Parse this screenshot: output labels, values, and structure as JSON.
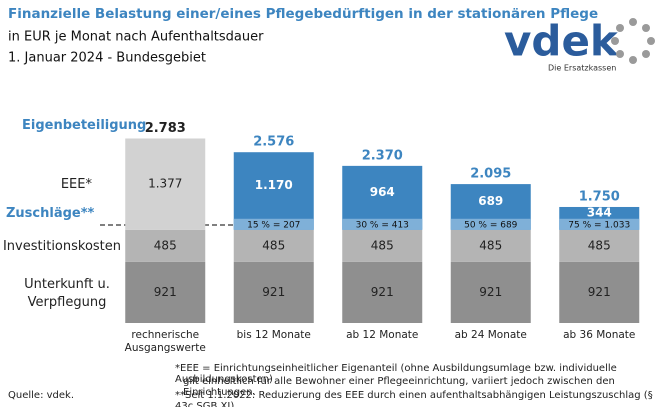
{
  "chart_data": {
    "type": "stacked-bar",
    "title": "Finanzielle Belastung einer/eines Pflegebedürftigen in der stationären Pflege",
    "subtitle": [
      "in EUR je Monat nach Aufenthaltsdauer",
      "1. Januar 2024 - Bundesgebiet"
    ],
    "categories": [
      "rechnerische Ausgangswerte",
      "bis 12 Monate",
      "ab 12 Monate",
      "ab 24 Monate",
      "ab 36 Monate"
    ],
    "series": [
      {
        "name": "Unterkunft u. Verpflegung",
        "color": "#8f8f8f",
        "values": [
          921,
          921,
          921,
          921,
          921
        ]
      },
      {
        "name": "Investitionskosten",
        "color": "#b4b4b4",
        "values": [
          485,
          485,
          485,
          485,
          485
        ]
      },
      {
        "name": "EEE*",
        "colors": [
          "#d2d2d2",
          "#3d85c0",
          "#3d85c0",
          "#3d85c0",
          "#3d85c0"
        ],
        "values": [
          1377,
          1170,
          964,
          689,
          344
        ],
        "value_labels": [
          "1.377",
          "1.170",
          "964",
          "689",
          "344"
        ]
      }
    ],
    "totals": {
      "name": "Eigenbeteiligung",
      "values": [
        2783,
        2576,
        2370,
        2095,
        1750
      ],
      "value_labels": [
        "2.783",
        "2.576",
        "2.370",
        "2.095",
        "1.750"
      ]
    },
    "zuschlaege": {
      "name": "Zuschläge**",
      "labels": [
        null,
        "15 % = 207",
        "30 % = 413",
        "50 % = 689",
        "75 % = 1.033"
      ]
    },
    "footnotes": [
      "*EEE = Einrichtungseinheitlicher Eigenanteil (ohne Ausbildungsumlage bzw. individuelle Ausbildungskosten)",
      "gilt einheitlich für alle Bewohner einer Pflegeeinrichtung, variiert jedoch zwischen den Einrichtungen.",
      "**Seit 1.1.2022: Reduzierung des EEE durch einen aufenthaltsabhängigen Leistungszuschlag (§ 43c SGB XI)."
    ],
    "source": "Quelle: vdek.",
    "logo": {
      "name": "vdek",
      "tagline": "Die Ersatzkassen"
    }
  }
}
